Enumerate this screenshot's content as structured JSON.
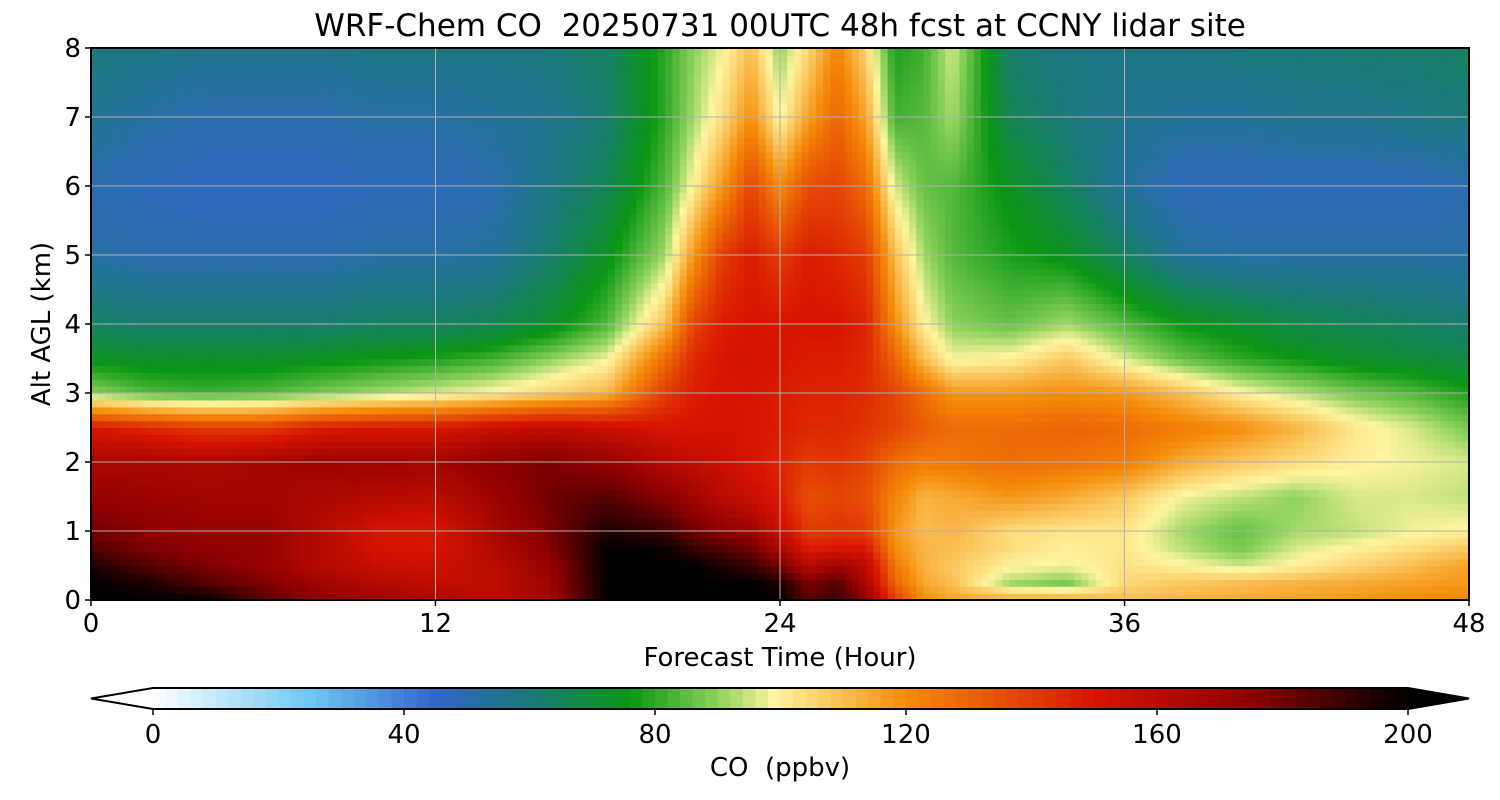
{
  "chart_data": {
    "type": "heatmap",
    "title": "WRF-Chem CO  20250731 00UTC 48h fcst at CCNY lidar site",
    "xlabel": "Forecast Time (Hour)",
    "ylabel": "Alt AGL (km)",
    "xlim": [
      0,
      48
    ],
    "ylim": [
      0,
      8
    ],
    "xticks": [
      0,
      12,
      24,
      36,
      48
    ],
    "yticks": [
      0,
      1,
      2,
      3,
      4,
      5,
      6,
      7,
      8
    ],
    "grid": true,
    "colorbar": {
      "label": "CO  (ppbv)",
      "range": [
        0,
        200
      ],
      "ticks": [
        0,
        40,
        80,
        120,
        160,
        200
      ],
      "extend": "both",
      "orientation": "horizontal",
      "placement": "bottom",
      "colors": {
        "0": "#ffffff",
        "25": "#6ec8f5",
        "45": "#3266c8",
        "60": "#1a7a7a",
        "76": "#0a9614",
        "90": "#8cd25a",
        "99": "#fff5a0",
        "120": "#f58c0a",
        "150": "#d71400",
        "175": "#8c0000",
        "200": "#000000"
      }
    },
    "x": [
      0,
      2,
      4,
      6,
      8,
      10,
      12,
      14,
      16,
      18,
      20,
      21,
      22,
      23,
      24,
      25,
      26,
      27,
      28,
      29,
      30,
      32,
      34,
      36,
      38,
      40,
      42,
      44,
      46,
      48
    ],
    "y": [
      0,
      0.25,
      0.5,
      0.75,
      1,
      1.5,
      2,
      2.5,
      3,
      3.5,
      4,
      5,
      6,
      7,
      8
    ],
    "values": [
      [
        200,
        200,
        200,
        185,
        175,
        170,
        165,
        160,
        168,
        200,
        200,
        200,
        200,
        200,
        200,
        185,
        190,
        175,
        140,
        120,
        115,
        115,
        115,
        110,
        112,
        114,
        116,
        118,
        120,
        122
      ],
      [
        200,
        195,
        185,
        178,
        168,
        162,
        158,
        158,
        170,
        200,
        200,
        200,
        200,
        200,
        195,
        178,
        185,
        165,
        130,
        115,
        110,
        92,
        88,
        105,
        108,
        110,
        112,
        114,
        116,
        118
      ],
      [
        195,
        185,
        178,
        172,
        162,
        156,
        154,
        160,
        172,
        200,
        200,
        200,
        195,
        190,
        180,
        160,
        170,
        160,
        125,
        112,
        108,
        100,
        98,
        103,
        100,
        95,
        100,
        105,
        110,
        116
      ],
      [
        185,
        178,
        174,
        172,
        162,
        152,
        150,
        162,
        176,
        200,
        198,
        190,
        185,
        180,
        165,
        148,
        150,
        150,
        120,
        112,
        110,
        104,
        100,
        102,
        94,
        88,
        96,
        100,
        104,
        108
      ],
      [
        180,
        175,
        172,
        172,
        162,
        150,
        150,
        165,
        178,
        195,
        190,
        180,
        175,
        170,
        155,
        140,
        142,
        140,
        118,
        110,
        112,
        104,
        102,
        102,
        92,
        86,
        92,
        94,
        98,
        100
      ],
      [
        172,
        170,
        168,
        168,
        165,
        162,
        160,
        170,
        180,
        185,
        175,
        168,
        160,
        155,
        148,
        135,
        138,
        135,
        122,
        112,
        114,
        118,
        114,
        108,
        98,
        94,
        90,
        96,
        96,
        94
      ],
      [
        165,
        166,
        164,
        168,
        170,
        170,
        168,
        175,
        178,
        172,
        162,
        158,
        155,
        150,
        146,
        140,
        142,
        138,
        128,
        124,
        125,
        128,
        126,
        124,
        114,
        108,
        104,
        100,
        98,
        96
      ],
      [
        150,
        145,
        140,
        140,
        148,
        150,
        150,
        155,
        158,
        155,
        150,
        150,
        152,
        150,
        148,
        145,
        145,
        142,
        138,
        132,
        128,
        128,
        130,
        128,
        124,
        120,
        112,
        102,
        96,
        88
      ],
      [
        90,
        84,
        82,
        84,
        88,
        92,
        96,
        100,
        106,
        112,
        140,
        148,
        150,
        150,
        148,
        146,
        146,
        144,
        138,
        128,
        118,
        118,
        120,
        118,
        110,
        100,
        94,
        88,
        84,
        78
      ],
      [
        74,
        72,
        72,
        72,
        74,
        76,
        78,
        82,
        90,
        98,
        128,
        145,
        150,
        152,
        150,
        148,
        148,
        145,
        130,
        110,
        98,
        100,
        108,
        96,
        86,
        80,
        76,
        72,
        70,
        68
      ],
      [
        64,
        62,
        62,
        62,
        62,
        64,
        64,
        66,
        72,
        84,
        110,
        138,
        148,
        150,
        150,
        150,
        150,
        146,
        120,
        100,
        90,
        86,
        92,
        84,
        76,
        72,
        68,
        66,
        64,
        62
      ],
      [
        52,
        50,
        50,
        50,
        50,
        52,
        52,
        54,
        62,
        74,
        92,
        118,
        140,
        148,
        140,
        148,
        145,
        140,
        110,
        92,
        84,
        78,
        74,
        64,
        54,
        52,
        52,
        52,
        52,
        52
      ],
      [
        50,
        48,
        47,
        47,
        47,
        48,
        48,
        50,
        58,
        66,
        84,
        100,
        118,
        138,
        120,
        136,
        138,
        128,
        96,
        86,
        84,
        74,
        64,
        54,
        48,
        48,
        48,
        48,
        48,
        50
      ],
      [
        56,
        52,
        50,
        50,
        50,
        52,
        52,
        54,
        56,
        62,
        80,
        92,
        104,
        120,
        98,
        116,
        130,
        115,
        82,
        84,
        92,
        66,
        60,
        56,
        54,
        54,
        56,
        56,
        58,
        60
      ],
      [
        60,
        58,
        56,
        56,
        56,
        58,
        58,
        58,
        60,
        64,
        80,
        90,
        98,
        110,
        90,
        105,
        122,
        105,
        78,
        82,
        96,
        62,
        58,
        58,
        58,
        60,
        60,
        62,
        62,
        64
      ]
    ]
  }
}
